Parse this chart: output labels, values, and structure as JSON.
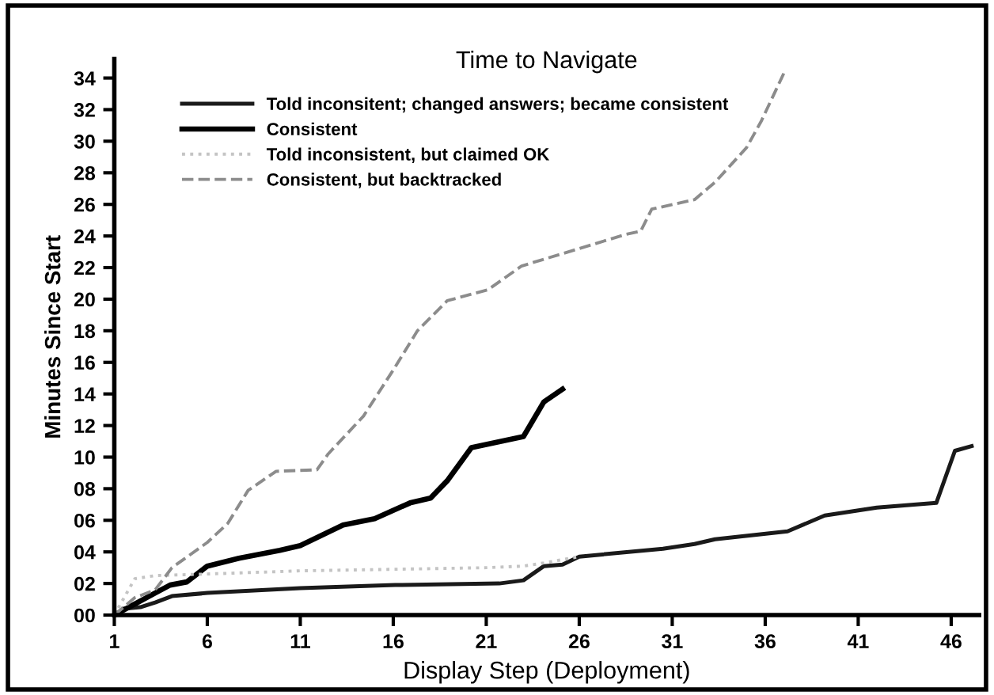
{
  "chart_data": {
    "type": "line",
    "title": "Time to Navigate",
    "xlabel": "Display Step (Deployment)",
    "ylabel": "Minutes Since Start",
    "xlim": [
      1,
      47.5
    ],
    "xticks": [
      1,
      6,
      11,
      16,
      21,
      26,
      31,
      36,
      41,
      46
    ],
    "ylim": [
      0,
      35.2
    ],
    "yticks": [
      {
        "value": 0,
        "label": "00"
      },
      {
        "value": 2,
        "label": "02"
      },
      {
        "value": 4,
        "label": "04"
      },
      {
        "value": 6,
        "label": "06"
      },
      {
        "value": 8,
        "label": "08"
      },
      10,
      12,
      14,
      16,
      18,
      20,
      22,
      24,
      26,
      28,
      30,
      32,
      34
    ],
    "grid": false,
    "legend": "top left",
    "marker": "none",
    "series": [
      {
        "name": "Told inconsitent; changed answers; became consistent",
        "color": "#1a1a1a",
        "line_style": "solid",
        "x": [
          1.5,
          2.4,
          3.2,
          4.1,
          6,
          11,
          16.1,
          21.7,
          23,
          24.1,
          25.1,
          26,
          30.5,
          32.2,
          33.3,
          37.2,
          39.2,
          42,
          45.2,
          46.2,
          47.1
        ],
        "values": [
          0.4,
          0.5,
          0.8,
          1.2,
          1.4,
          1.7,
          1.9,
          2.0,
          2.2,
          3.1,
          3.2,
          3.7,
          4.2,
          4.5,
          4.8,
          5.3,
          6.3,
          6.8,
          7.1,
          10.4,
          10.7
        ]
      },
      {
        "name": "Consistent",
        "color": "#000000",
        "line_style": "solid",
        "x": [
          1,
          3.2,
          4.0,
          4.9,
          6,
          7.7,
          9.9,
          11,
          13.3,
          15,
          16.9,
          18,
          18.9,
          20.2,
          21.8,
          23,
          24.1,
          25.1
        ],
        "values": [
          0,
          1.4,
          1.9,
          2.1,
          3.1,
          3.6,
          4.1,
          4.4,
          5.7,
          6.1,
          7.1,
          7.4,
          8.5,
          10.6,
          11.0,
          11.3,
          13.5,
          14.3
        ]
      },
      {
        "name": "Told inconsistent, but claimed OK",
        "color": "#c4c4c4",
        "line_style": "dotted",
        "x": [
          1,
          2.1,
          3.2,
          6,
          11,
          16.1,
          21,
          23,
          24.1,
          26
        ],
        "values": [
          0,
          2.3,
          2.5,
          2.6,
          2.8,
          2.9,
          3.0,
          3.1,
          3.3,
          3.7
        ]
      },
      {
        "name": "Consistent, but backtracked",
        "color": "#8c8c8c",
        "line_style": "dashed",
        "x": [
          1,
          2.1,
          3.2,
          4.1,
          6,
          7.1,
          8.2,
          9.7,
          11.9,
          12.5,
          14.4,
          16.1,
          17.3,
          18.9,
          21.1,
          22.9,
          25.7,
          28.5,
          29.3,
          29.9,
          32.2,
          33.3,
          35,
          35.8,
          37
        ],
        "values": [
          0,
          1.1,
          1.6,
          3.0,
          4.6,
          5.8,
          7.9,
          9.1,
          9.2,
          10.2,
          12.6,
          15.7,
          18.0,
          19.9,
          20.6,
          22.1,
          23.1,
          24.1,
          24.3,
          25.7,
          26.3,
          27.4,
          29.6,
          31.3,
          34.3
        ]
      }
    ]
  }
}
